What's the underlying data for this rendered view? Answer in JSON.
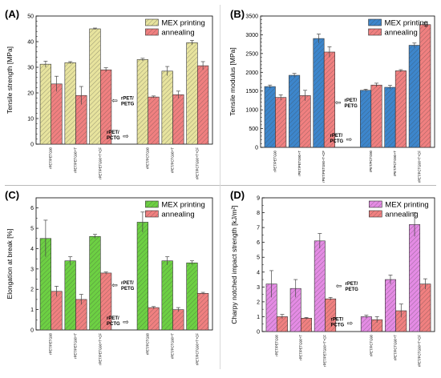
{
  "legend": {
    "printing": "MEX printing",
    "annealing": "annealing",
    "printing_color": "#e7e39e",
    "annealing_color": "#f08080"
  },
  "group_labels": {
    "petg": [
      "rPET/",
      "PETG"
    ],
    "pctg": [
      "rPET/",
      "PCTG"
    ]
  },
  "arrow_glyph": "⇦",
  "chart_data": [
    {
      "panel": "(A)",
      "type": "bar",
      "ylabel": "Tensile strength [MPa]",
      "ylim": [
        0,
        50
      ],
      "yticks": [
        0,
        10,
        20,
        30,
        40,
        50
      ],
      "minor_ticks": 5,
      "categories": [
        "rPET/PETG90",
        "rPET/PETG90+T",
        "rPET/PETG90+T+CF",
        "rPET/PCTG90",
        "rPET/PCTG90+T",
        "rPET/PCTG90+T+CF"
      ],
      "colors": [
        "#e7e39e",
        "#f08080"
      ],
      "series": [
        {
          "name": "MEX printing",
          "values": [
            31.2,
            31.8,
            45.0,
            33.0,
            28.5,
            39.6
          ],
          "errors": [
            1.2,
            0.4,
            0.3,
            0.5,
            1.8,
            0.9
          ]
        },
        {
          "name": "annealing",
          "values": [
            23.5,
            19.0,
            29.0,
            18.4,
            19.3,
            30.6
          ],
          "errors": [
            3.0,
            3.5,
            0.8,
            0.4,
            1.4,
            1.6
          ]
        }
      ],
      "grid": false,
      "legend_position": "top-right"
    },
    {
      "panel": "(B)",
      "type": "bar",
      "ylabel": "Tensile modulus [MPa]",
      "ylim": [
        0,
        3500
      ],
      "yticks": [
        0,
        500,
        1000,
        1500,
        2000,
        2500,
        3000,
        3500
      ],
      "minor_ticks": 5,
      "categories": [
        "rPET/PETG90",
        "rPET/PETG90+T",
        "rPET/PETG90+T+CF",
        "rPET/PCTG90",
        "rPET/PCTG90+T",
        "rPET/PCTG90+T+CF"
      ],
      "colors": [
        "#3d86cc",
        "#f08080"
      ],
      "series": [
        {
          "name": "MEX printing",
          "values": [
            1620,
            1920,
            2900,
            1520,
            1600,
            2720
          ],
          "errors": [
            40,
            50,
            120,
            30,
            50,
            60
          ]
        },
        {
          "name": "annealing",
          "values": [
            1330,
            1380,
            2540,
            1660,
            2040,
            3270
          ],
          "errors": [
            70,
            140,
            140,
            50,
            30,
            60
          ]
        }
      ],
      "grid": false,
      "legend_position": "top-right"
    },
    {
      "panel": "(C)",
      "type": "bar",
      "ylabel": "Elongation at break [%]",
      "ylim": [
        0,
        6.5
      ],
      "yticks": [
        0,
        1,
        2,
        3,
        4,
        5,
        6
      ],
      "minor_ticks": 2,
      "categories": [
        "rPET/PETG90",
        "rPET/PETG90+T",
        "rPET/PETG90+T+CF",
        "rPET/PCTG90",
        "rPET/PCTG90+T",
        "rPET/PCTG90+T+CF"
      ],
      "colors": [
        "#6dd043",
        "#f08080"
      ],
      "series": [
        {
          "name": "MEX printing",
          "values": [
            4.5,
            3.4,
            4.6,
            5.3,
            3.4,
            3.3
          ],
          "errors": [
            0.9,
            0.2,
            0.1,
            0.5,
            0.2,
            0.1
          ]
        },
        {
          "name": "annealing",
          "values": [
            1.9,
            1.5,
            2.8,
            1.1,
            1.0,
            1.8
          ],
          "errors": [
            0.25,
            0.25,
            0.05,
            0.05,
            0.1,
            0.05
          ]
        }
      ],
      "grid": false,
      "legend_position": "top-right"
    },
    {
      "panel": "(D)",
      "type": "bar",
      "ylabel": "Charpy notched impact strength [kJ/m²]",
      "ylim": [
        0,
        9
      ],
      "yticks": [
        0,
        1,
        2,
        3,
        4,
        5,
        6,
        7,
        8,
        9
      ],
      "minor_ticks": 2,
      "categories": [
        "rPET/PETG90",
        "rPET/PETG90+T",
        "rPET/PETG90+T+CF",
        "rPET/PCTG90",
        "rPET/PCTG90+T",
        "rPET/PCTG90+T+CF"
      ],
      "colors": [
        "#e48be4",
        "#f08080"
      ],
      "series": [
        {
          "name": "MEX printing",
          "values": [
            3.2,
            2.9,
            6.1,
            1.0,
            3.5,
            7.2
          ],
          "errors": [
            0.9,
            0.6,
            0.5,
            0.1,
            0.3,
            0.8
          ]
        },
        {
          "name": "annealing",
          "values": [
            1.0,
            0.9,
            2.2,
            0.8,
            1.4,
            3.2
          ],
          "errors": [
            0.15,
            0.05,
            0.1,
            0.2,
            0.45,
            0.35
          ]
        }
      ],
      "grid": false,
      "legend_position": "top-right"
    }
  ]
}
